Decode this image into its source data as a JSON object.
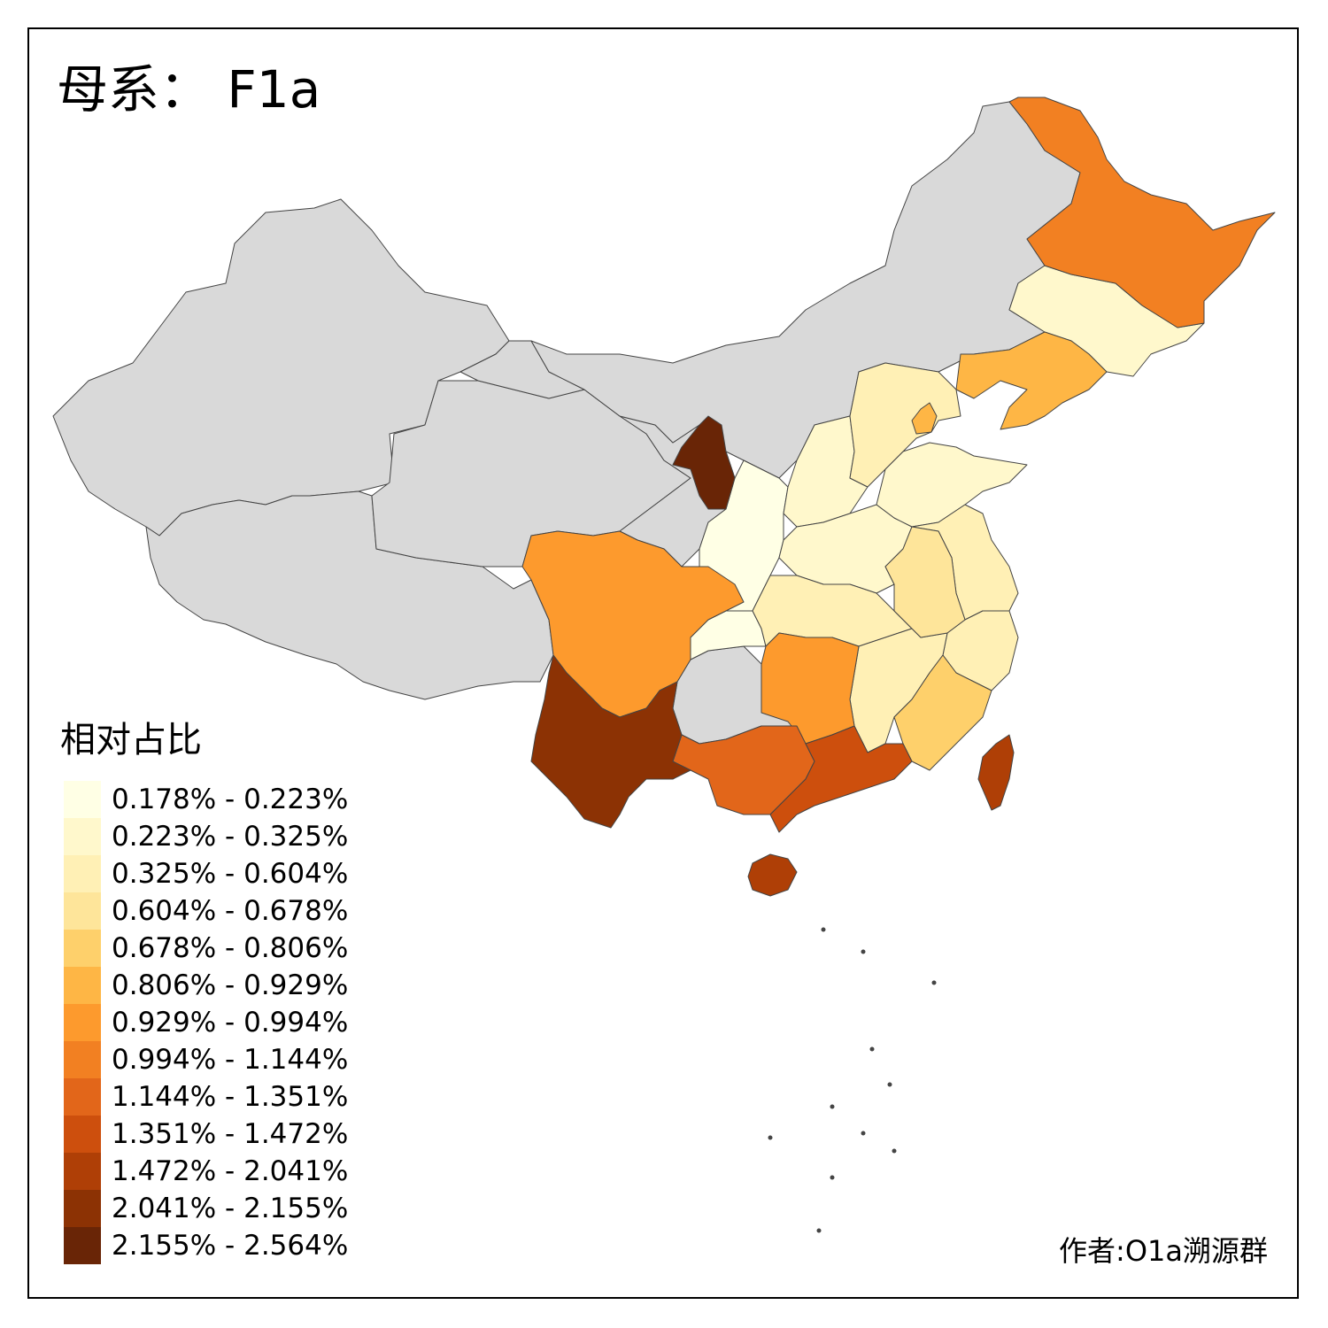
{
  "title": "母系： F1a",
  "legend": {
    "title": "相对占比",
    "items": [
      {
        "label": "0.178% - 0.223%",
        "color": "#ffffe5"
      },
      {
        "label": "0.223% - 0.325%",
        "color": "#fff8cc"
      },
      {
        "label": "0.325% - 0.604%",
        "color": "#fff0b5"
      },
      {
        "label": "0.604% - 0.678%",
        "color": "#fee59a"
      },
      {
        "label": "0.678% - 0.806%",
        "color": "#fed06b"
      },
      {
        "label": "0.806% - 0.929%",
        "color": "#feb645"
      },
      {
        "label": "0.929% - 0.994%",
        "color": "#fd9a2d"
      },
      {
        "label": "0.994% - 1.144%",
        "color": "#f28022"
      },
      {
        "label": "1.144% - 1.351%",
        "color": "#e2661a"
      },
      {
        "label": "1.351% - 1.472%",
        "color": "#cd4f0d"
      },
      {
        "label": "1.472% - 2.041%",
        "color": "#af3f06"
      },
      {
        "label": "2.041% - 2.155%",
        "color": "#8c3204"
      },
      {
        "label": "2.155% - 2.564%",
        "color": "#692506"
      }
    ]
  },
  "no_data_color": "#d9d9d9",
  "regions": [
    {
      "name": "Xinjiang",
      "class": null
    },
    {
      "name": "Tibet",
      "class": null
    },
    {
      "name": "Qinghai",
      "class": null
    },
    {
      "name": "Gansu",
      "class": null
    },
    {
      "name": "Inner Mongolia",
      "class": null
    },
    {
      "name": "Guizhou",
      "class": null
    },
    {
      "name": "Shaanxi",
      "class": 0
    },
    {
      "name": "Chongqing",
      "class": 0
    },
    {
      "name": "Jilin",
      "class": 1
    },
    {
      "name": "Shanxi",
      "class": 1
    },
    {
      "name": "Henan",
      "class": 1
    },
    {
      "name": "Shandong",
      "class": 1
    },
    {
      "name": "Beijing",
      "class": 1
    },
    {
      "name": "Hebei",
      "class": 2
    },
    {
      "name": "Hubei",
      "class": 2
    },
    {
      "name": "Jiangsu",
      "class": 2
    },
    {
      "name": "Zhejiang",
      "class": 2
    },
    {
      "name": "Jiangxi",
      "class": 2
    },
    {
      "name": "Anhui",
      "class": 3
    },
    {
      "name": "Fujian",
      "class": 4
    },
    {
      "name": "Liaoning",
      "class": 5
    },
    {
      "name": "Tianjin",
      "class": 5
    },
    {
      "name": "Sichuan",
      "class": 6
    },
    {
      "name": "Hunan",
      "class": 6
    },
    {
      "name": "Heilongjiang",
      "class": 7
    },
    {
      "name": "Guangxi",
      "class": 8
    },
    {
      "name": "Guangdong",
      "class": 9
    },
    {
      "name": "Hainan",
      "class": 10
    },
    {
      "name": "Taiwan",
      "class": 10
    },
    {
      "name": "Yunnan",
      "class": 11
    },
    {
      "name": "Ningxia",
      "class": 12
    }
  ],
  "credit": "作者:O1a溯源群"
}
